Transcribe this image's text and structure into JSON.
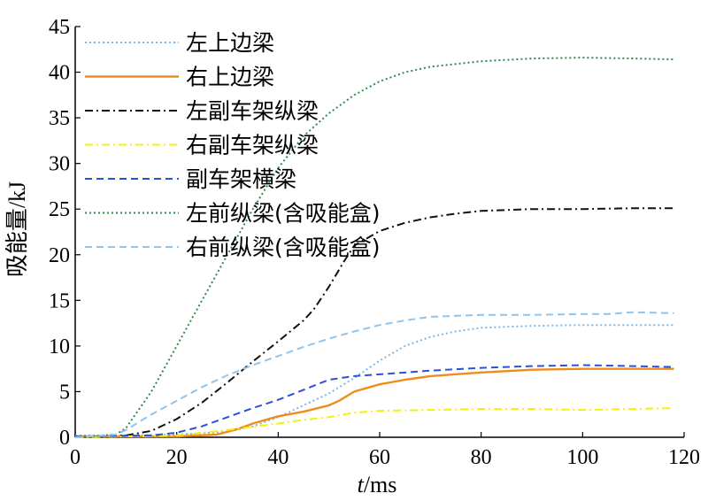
{
  "chart_data": {
    "type": "line",
    "xlabel_italic": "t",
    "xlabel_unit": "/ms",
    "ylabel": "吸能量/kJ",
    "xlim": [
      0,
      120
    ],
    "ylim": [
      0,
      45
    ],
    "x_ticks": [
      "0",
      "20",
      "40",
      "60",
      "80",
      "100",
      "120"
    ],
    "y_ticks": [
      "0",
      "5",
      "10",
      "15",
      "20",
      "25",
      "30",
      "35",
      "40",
      "45"
    ],
    "grid": false,
    "legend_position": "top-left",
    "series": [
      {
        "name": "左上边梁",
        "color": "#7fb6e6",
        "style": "dotted",
        "points": [
          [
            0,
            0.2
          ],
          [
            10,
            0.2
          ],
          [
            20,
            0.3
          ],
          [
            30,
            0.6
          ],
          [
            35,
            1.2
          ],
          [
            40,
            2.2
          ],
          [
            45,
            3.5
          ],
          [
            50,
            4.8
          ],
          [
            55,
            6.5
          ],
          [
            60,
            8.4
          ],
          [
            65,
            10.0
          ],
          [
            70,
            11.0
          ],
          [
            75,
            11.6
          ],
          [
            80,
            12.0
          ],
          [
            90,
            12.2
          ],
          [
            100,
            12.3
          ],
          [
            110,
            12.3
          ],
          [
            118,
            12.3
          ]
        ]
      },
      {
        "name": "右上边梁",
        "color": "#f08c1a",
        "style": "solid",
        "points": [
          [
            0,
            0.1
          ],
          [
            20,
            0.1
          ],
          [
            28,
            0.3
          ],
          [
            32,
            0.9
          ],
          [
            35,
            1.5
          ],
          [
            40,
            2.3
          ],
          [
            45,
            2.8
          ],
          [
            50,
            3.5
          ],
          [
            52,
            4.0
          ],
          [
            55,
            5.0
          ],
          [
            60,
            5.8
          ],
          [
            65,
            6.3
          ],
          [
            70,
            6.7
          ],
          [
            80,
            7.1
          ],
          [
            90,
            7.4
          ],
          [
            100,
            7.5
          ],
          [
            110,
            7.5
          ],
          [
            118,
            7.5
          ]
        ]
      },
      {
        "name": "左副车架纵梁",
        "color": "#111111",
        "style": "dashdot",
        "points": [
          [
            0,
            0
          ],
          [
            10,
            0.2
          ],
          [
            15,
            0.7
          ],
          [
            20,
            2.0
          ],
          [
            25,
            3.8
          ],
          [
            30,
            6.0
          ],
          [
            35,
            8.3
          ],
          [
            40,
            10.5
          ],
          [
            45,
            12.8
          ],
          [
            47,
            14.0
          ],
          [
            50,
            16.5
          ],
          [
            53,
            19.3
          ],
          [
            55,
            21.0
          ],
          [
            60,
            22.6
          ],
          [
            65,
            23.5
          ],
          [
            70,
            24.1
          ],
          [
            75,
            24.5
          ],
          [
            80,
            24.8
          ],
          [
            90,
            25.0
          ],
          [
            100,
            25.0
          ],
          [
            110,
            25.1
          ],
          [
            118,
            25.1
          ]
        ]
      },
      {
        "name": "右副车架纵梁",
        "color": "#f2f20d",
        "style": "dashdot",
        "points": [
          [
            0,
            0
          ],
          [
            20,
            0.2
          ],
          [
            30,
            0.8
          ],
          [
            40,
            1.5
          ],
          [
            45,
            1.9
          ],
          [
            50,
            2.2
          ],
          [
            55,
            2.7
          ],
          [
            60,
            2.9
          ],
          [
            70,
            3.0
          ],
          [
            80,
            3.1
          ],
          [
            90,
            3.1
          ],
          [
            100,
            3.0
          ],
          [
            110,
            3.1
          ],
          [
            118,
            3.2
          ]
        ]
      },
      {
        "name": "副车架横梁",
        "color": "#2a52d8",
        "style": "dashed",
        "points": [
          [
            0,
            0.1
          ],
          [
            15,
            0.2
          ],
          [
            20,
            0.5
          ],
          [
            25,
            1.2
          ],
          [
            30,
            2.2
          ],
          [
            35,
            3.2
          ],
          [
            40,
            4.1
          ],
          [
            45,
            5.2
          ],
          [
            50,
            6.3
          ],
          [
            55,
            6.7
          ],
          [
            60,
            6.9
          ],
          [
            70,
            7.3
          ],
          [
            80,
            7.6
          ],
          [
            90,
            7.8
          ],
          [
            100,
            7.9
          ],
          [
            110,
            7.8
          ],
          [
            118,
            7.7
          ]
        ]
      },
      {
        "name": "左前纵梁(含吸能盒)",
        "color": "#2e8b4e",
        "style": "dotted",
        "points": [
          [
            0,
            0
          ],
          [
            8,
            0.3
          ],
          [
            10,
            1.0
          ],
          [
            15,
            5.0
          ],
          [
            20,
            10.0
          ],
          [
            25,
            15.0
          ],
          [
            30,
            20.0
          ],
          [
            35,
            25.0
          ],
          [
            40,
            29.5
          ],
          [
            45,
            33.0
          ],
          [
            50,
            35.5
          ],
          [
            55,
            37.5
          ],
          [
            60,
            39.0
          ],
          [
            65,
            40.0
          ],
          [
            70,
            40.6
          ],
          [
            80,
            41.2
          ],
          [
            90,
            41.5
          ],
          [
            100,
            41.6
          ],
          [
            110,
            41.5
          ],
          [
            118,
            41.4
          ]
        ]
      },
      {
        "name": "右前纵梁(含吸能盒)",
        "color": "#8ec4ee",
        "style": "dashed",
        "points": [
          [
            0,
            0
          ],
          [
            8,
            0.3
          ],
          [
            10,
            0.8
          ],
          [
            15,
            2.5
          ],
          [
            20,
            4.0
          ],
          [
            25,
            5.5
          ],
          [
            30,
            6.8
          ],
          [
            35,
            7.9
          ],
          [
            40,
            8.9
          ],
          [
            45,
            9.9
          ],
          [
            50,
            10.8
          ],
          [
            55,
            11.6
          ],
          [
            60,
            12.3
          ],
          [
            65,
            12.8
          ],
          [
            70,
            13.2
          ],
          [
            80,
            13.4
          ],
          [
            90,
            13.4
          ],
          [
            100,
            13.5
          ],
          [
            105,
            13.5
          ],
          [
            110,
            13.7
          ],
          [
            118,
            13.6
          ]
        ]
      }
    ]
  }
}
